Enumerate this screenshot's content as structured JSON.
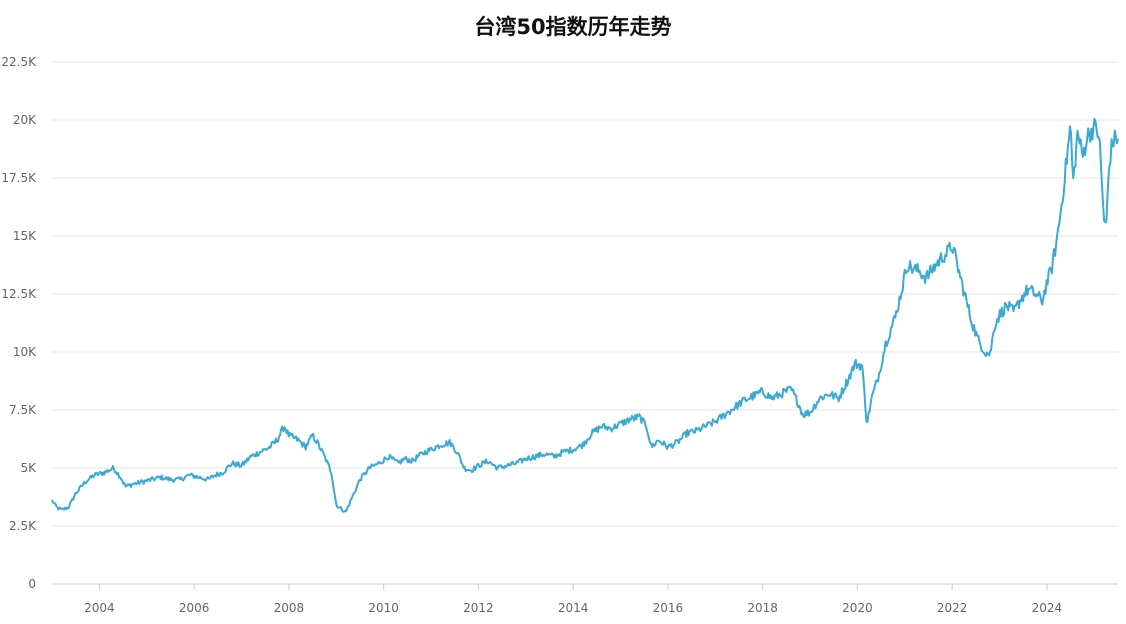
{
  "chart_data": {
    "type": "line",
    "title": "台湾50指数历年走势",
    "xlabel": "",
    "ylabel": "",
    "xlim": [
      2003.0,
      2025.5
    ],
    "ylim": [
      0,
      22500
    ],
    "y_ticks": [
      0,
      2500,
      5000,
      7500,
      10000,
      12500,
      15000,
      17500,
      20000,
      22500
    ],
    "y_tick_labels": [
      "0",
      "2.5K",
      "5K",
      "7.5K",
      "10K",
      "12.5K",
      "15K",
      "17.5K",
      "20K",
      "22.5K"
    ],
    "x_ticks": [
      2004,
      2006,
      2008,
      2010,
      2012,
      2014,
      2016,
      2018,
      2020,
      2022,
      2024
    ],
    "x_tick_labels": [
      "2004",
      "2006",
      "2008",
      "2010",
      "2012",
      "2014",
      "2016",
      "2018",
      "2020",
      "2022",
      "2024"
    ],
    "grid": "horizontal",
    "legend": "none",
    "color": "#3aa9d4",
    "series": [
      {
        "x": [
          2003.0,
          2003.1,
          2003.2,
          2003.35,
          2003.5,
          2003.7,
          2003.9,
          2004.1,
          2004.3,
          2004.45,
          2004.55,
          2004.7,
          2004.9,
          2005.1,
          2005.3,
          2005.5,
          2005.7,
          2005.9,
          2006.1,
          2006.3,
          2006.45,
          2006.6,
          2006.8,
          2007.0,
          2007.2,
          2007.4,
          2007.6,
          2007.75,
          2007.9,
          2008.0,
          2008.2,
          2008.35,
          2008.5,
          2008.6,
          2008.75,
          2008.9,
          2009.0,
          2009.2,
          2009.35,
          2009.5,
          2009.7,
          2009.9,
          2010.1,
          2010.3,
          2010.45,
          2010.6,
          2010.8,
          2011.0,
          2011.2,
          2011.4,
          2011.55,
          2011.7,
          2011.85,
          2012.0,
          2012.2,
          2012.4,
          2012.6,
          2012.8,
          2013.0,
          2013.2,
          2013.4,
          2013.6,
          2013.8,
          2014.0,
          2014.2,
          2014.4,
          2014.6,
          2014.8,
          2015.0,
          2015.2,
          2015.4,
          2015.55,
          2015.65,
          2015.8,
          2016.0,
          2016.2,
          2016.4,
          2016.6,
          2016.8,
          2017.0,
          2017.2,
          2017.4,
          2017.6,
          2017.8,
          2018.0,
          2018.2,
          2018.4,
          2018.6,
          2018.75,
          2018.85,
          2019.0,
          2019.2,
          2019.4,
          2019.6,
          2019.8,
          2019.95,
          2020.1,
          2020.2,
          2020.3,
          2020.45,
          2020.6,
          2020.8,
          2020.95,
          2021.05,
          2021.15,
          2021.3,
          2021.45,
          2021.6,
          2021.75,
          2021.9,
          2022.0,
          2022.1,
          2022.25,
          2022.4,
          2022.55,
          2022.7,
          2022.8,
          2022.9,
          2023.0,
          2023.15,
          2023.3,
          2023.45,
          2023.6,
          2023.75,
          2023.9,
          2024.0,
          2024.1,
          2024.2,
          2024.3,
          2024.4,
          2024.5,
          2024.55,
          2024.65,
          2024.75,
          2024.85,
          2025.0,
          2025.1,
          2025.2,
          2025.25,
          2025.3,
          2025.35,
          2025.4,
          2025.5
        ],
        "y": [
          3600,
          3300,
          3200,
          3300,
          3900,
          4400,
          4700,
          4800,
          5000,
          4600,
          4200,
          4300,
          4400,
          4500,
          4600,
          4500,
          4500,
          4700,
          4600,
          4500,
          4700,
          4800,
          5200,
          5100,
          5500,
          5700,
          5900,
          6200,
          6800,
          6400,
          6200,
          5900,
          6400,
          6100,
          5500,
          4800,
          3400,
          3100,
          3800,
          4500,
          5000,
          5200,
          5500,
          5200,
          5400,
          5300,
          5600,
          5800,
          6000,
          6100,
          5700,
          5000,
          4900,
          5100,
          5300,
          5000,
          5100,
          5200,
          5400,
          5500,
          5600,
          5500,
          5700,
          5800,
          6000,
          6500,
          6800,
          6700,
          6900,
          7100,
          7200,
          6800,
          5900,
          6200,
          5900,
          6100,
          6500,
          6600,
          6800,
          7000,
          7300,
          7600,
          7900,
          8100,
          8300,
          8000,
          8200,
          8400,
          7800,
          7300,
          7400,
          8000,
          8200,
          8000,
          8800,
          9500,
          9400,
          6900,
          8000,
          9000,
          10400,
          11500,
          12800,
          13800,
          13600,
          13500,
          13200,
          13600,
          14000,
          14300,
          14600,
          13800,
          12600,
          11400,
          10500,
          10000,
          9900,
          11200,
          11600,
          12000,
          11700,
          12300,
          12700,
          12500,
          12200,
          13000,
          13600,
          14700,
          16200,
          18000,
          19800,
          17200,
          19500,
          18400,
          19300,
          19700,
          19400,
          15800,
          15300,
          17600,
          18700,
          19100,
          19300
        ]
      }
    ]
  }
}
